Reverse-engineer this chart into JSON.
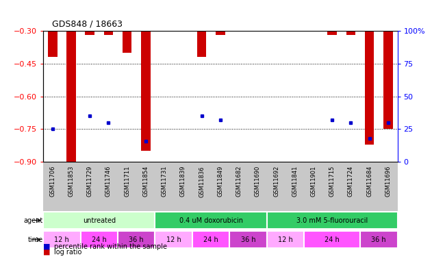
{
  "title": "GDS848 / 18663",
  "samples": [
    "GSM11706",
    "GSM11853",
    "GSM11729",
    "GSM11746",
    "GSM11711",
    "GSM11854",
    "GSM11731",
    "GSM11839",
    "GSM11836",
    "GSM11849",
    "GSM11682",
    "GSM11690",
    "GSM11692",
    "GSM11841",
    "GSM11901",
    "GSM11715",
    "GSM11724",
    "GSM11684",
    "GSM11696"
  ],
  "log_ratio": [
    -0.42,
    -0.9,
    -0.32,
    -0.32,
    -0.4,
    -0.85,
    null,
    null,
    -0.42,
    -0.32,
    null,
    null,
    null,
    null,
    null,
    -0.32,
    -0.32,
    -0.82,
    -0.75
  ],
  "percentile": [
    25,
    0,
    35,
    30,
    0,
    16,
    0,
    0,
    35,
    32,
    0,
    0,
    0,
    0,
    0,
    32,
    30,
    18,
    30
  ],
  "ylim_left": [
    -0.9,
    -0.3
  ],
  "ylim_right": [
    0,
    100
  ],
  "yticks_left": [
    -0.9,
    -0.75,
    -0.6,
    -0.45,
    -0.3
  ],
  "yticks_right": [
    0,
    25,
    50,
    75,
    100
  ],
  "grid_lines": [
    -0.45,
    -0.6,
    -0.75
  ],
  "bar_color": "#cc0000",
  "dot_color": "#0000cc",
  "agent_groups": [
    {
      "label": "untreated",
      "start": 0,
      "end": 6,
      "color": "#ccffcc"
    },
    {
      "label": "0.4 uM doxorubicin",
      "start": 6,
      "end": 12,
      "color": "#33cc66"
    },
    {
      "label": "3.0 mM 5-fluorouracil",
      "start": 12,
      "end": 19,
      "color": "#33cc66"
    }
  ],
  "time_groups": [
    {
      "label": "12 h",
      "start": 0,
      "end": 2,
      "color": "#ffaaff"
    },
    {
      "label": "24 h",
      "start": 2,
      "end": 4,
      "color": "#ff55ff"
    },
    {
      "label": "36 h",
      "start": 4,
      "end": 6,
      "color": "#cc44cc"
    },
    {
      "label": "12 h",
      "start": 6,
      "end": 8,
      "color": "#ffaaff"
    },
    {
      "label": "24 h",
      "start": 8,
      "end": 10,
      "color": "#ff55ff"
    },
    {
      "label": "36 h",
      "start": 10,
      "end": 12,
      "color": "#cc44cc"
    },
    {
      "label": "12 h",
      "start": 12,
      "end": 14,
      "color": "#ffaaff"
    },
    {
      "label": "24 h",
      "start": 14,
      "end": 17,
      "color": "#ff55ff"
    },
    {
      "label": "36 h",
      "start": 17,
      "end": 19,
      "color": "#cc44cc"
    }
  ],
  "legend_items": [
    {
      "color": "#cc0000",
      "label": "log ratio"
    },
    {
      "color": "#0000cc",
      "label": "percentile rank within the sample"
    }
  ]
}
